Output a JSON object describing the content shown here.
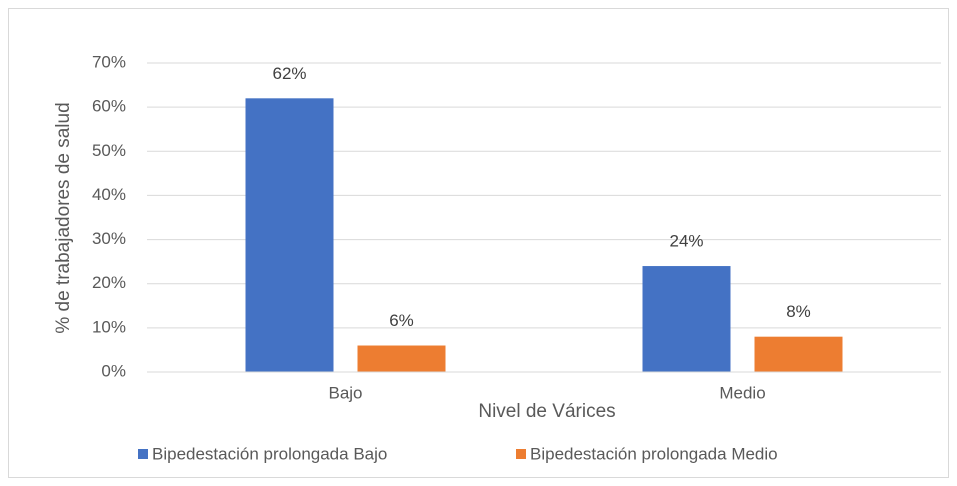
{
  "chart_data": {
    "type": "bar",
    "categories": [
      "Bajo",
      "Medio"
    ],
    "series": [
      {
        "name": "Bipedestación prolongada Bajo",
        "color": "#4472c4",
        "values": [
          62,
          24
        ],
        "value_labels": [
          "62%",
          "24%"
        ]
      },
      {
        "name": "Bipedestación prolongada Medio",
        "color": "#ed7d31",
        "values": [
          6,
          8
        ],
        "value_labels": [
          "6%",
          "8%"
        ]
      }
    ],
    "x_label": "Nivel de Várices",
    "y_label": "% de trabajadores de salud",
    "ylim": [
      0,
      70
    ],
    "yticks": [
      {
        "value": 0,
        "label": "0%"
      },
      {
        "value": 10,
        "label": "10%"
      },
      {
        "value": 20,
        "label": "20%"
      },
      {
        "value": 30,
        "label": "30%"
      },
      {
        "value": 40,
        "label": "40%"
      },
      {
        "value": 50,
        "label": "50%"
      },
      {
        "value": 60,
        "label": "60%"
      },
      {
        "value": 70,
        "label": "70%"
      }
    ],
    "grid": true,
    "legend": "bottom"
  }
}
